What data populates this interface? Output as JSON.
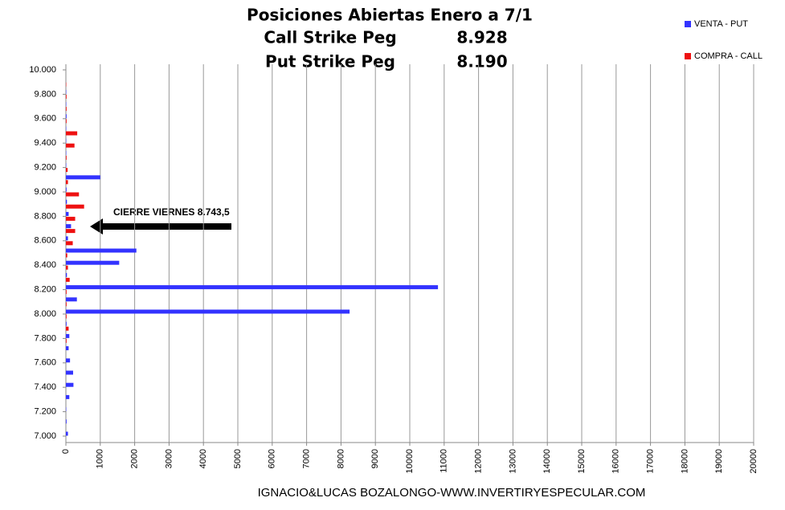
{
  "chart_data": {
    "type": "hbar",
    "title": "Posiciones Abiertas Enero a 7/1",
    "subtitle_lines": [
      {
        "label": "Call Strike Peg",
        "value": "8.928"
      },
      {
        "label": "Put Strike Peg",
        "value": "8.190"
      }
    ],
    "annotation": "CIERRE VIERNES  8.743,5",
    "footer": "IGNACIO&LUCAS BOZALONGO-WWW.INVERTIRYESPECULAR.COM",
    "categories": [
      "7.000",
      null,
      "7.200",
      null,
      "7.400",
      null,
      "7.600",
      null,
      "7.800",
      null,
      "8.000",
      null,
      "8.200",
      null,
      "8.400",
      null,
      "8.600",
      null,
      "8.800",
      null,
      "9.000",
      null,
      "9.200",
      null,
      "9.400",
      null,
      "9.600",
      null,
      "9.800",
      null,
      "10.000"
    ],
    "series": [
      {
        "name": "VENTA - PUT",
        "color": "#3333ff",
        "values": [
          60,
          20,
          10,
          100,
          220,
          210,
          120,
          80,
          100,
          20,
          8250,
          320,
          10820,
          30,
          1550,
          2050,
          60,
          150,
          80,
          30,
          20,
          1000,
          10,
          10,
          10,
          10,
          20,
          10,
          10,
          0,
          0
        ]
      },
      {
        "name": "COMPRA - CALL",
        "color": "#ee1111",
        "values": [
          0,
          0,
          0,
          0,
          0,
          0,
          0,
          0,
          20,
          80,
          20,
          20,
          20,
          110,
          60,
          40,
          200,
          270,
          270,
          530,
          380,
          60,
          50,
          20,
          250,
          330,
          20,
          20,
          20,
          10,
          0
        ]
      }
    ],
    "xlim": [
      0,
      20000
    ],
    "xticks": [
      0,
      1000,
      2000,
      3000,
      4000,
      5000,
      6000,
      7000,
      8000,
      9000,
      10000,
      11000,
      12000,
      13000,
      14000,
      15000,
      16000,
      17000,
      18000,
      19000,
      20000
    ],
    "grid": true,
    "legend": "top-right"
  }
}
